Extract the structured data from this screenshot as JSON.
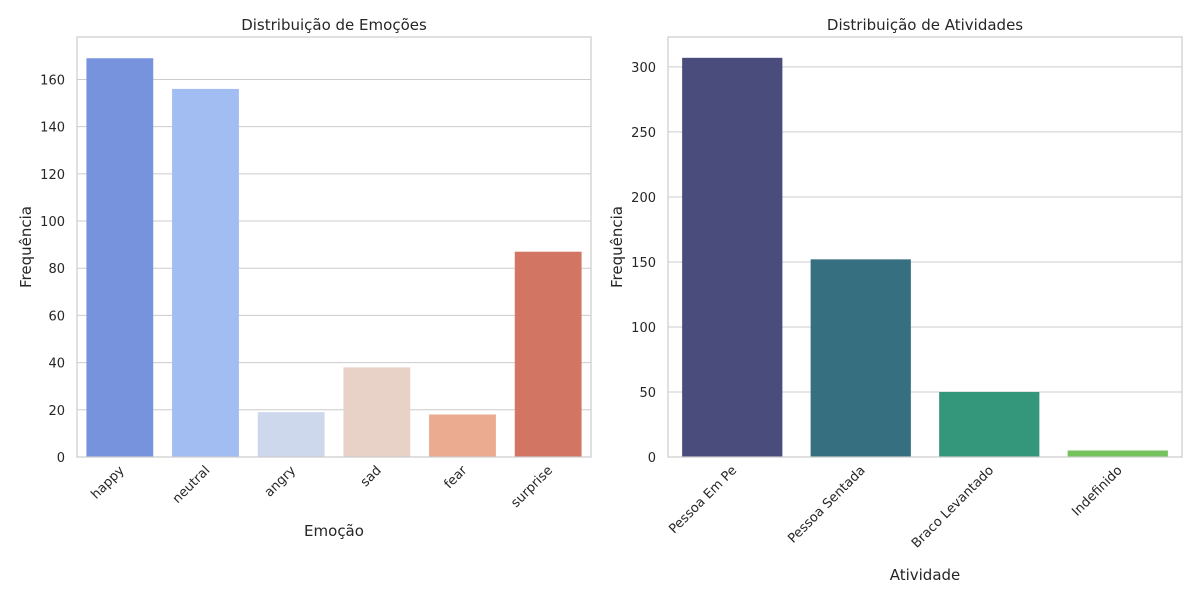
{
  "chart_data": [
    {
      "type": "bar",
      "title": "Distribuição de Emoções",
      "xlabel": "Emoção",
      "ylabel": "Frequência",
      "categories": [
        "happy",
        "neutral",
        "angry",
        "sad",
        "fear",
        "surprise"
      ],
      "values": [
        169,
        156,
        19,
        38,
        18,
        87
      ],
      "colors": [
        "#7793de",
        "#a1bdf2",
        "#cdd8ec",
        "#e8d2c7",
        "#eaab91",
        "#d27562"
      ],
      "ylim": [
        0,
        178
      ],
      "yticks": [
        0,
        20,
        40,
        60,
        80,
        100,
        120,
        140,
        160
      ],
      "grid": true,
      "xtick_rotation": 45
    },
    {
      "type": "bar",
      "title": "Distribuição de Atividades",
      "xlabel": "Atividade",
      "ylabel": "Frequência",
      "categories": [
        "Pessoa Em Pe",
        "Pessoa Sentada",
        "Braco Levantado",
        "Indefinido"
      ],
      "values": [
        307,
        152,
        50,
        5
      ],
      "colors": [
        "#4a4c7c",
        "#367080",
        "#34977c",
        "#74c35f"
      ],
      "ylim": [
        0,
        323
      ],
      "yticks": [
        0,
        50,
        100,
        150,
        200,
        250,
        300
      ],
      "grid": true,
      "xtick_rotation": 45
    }
  ]
}
